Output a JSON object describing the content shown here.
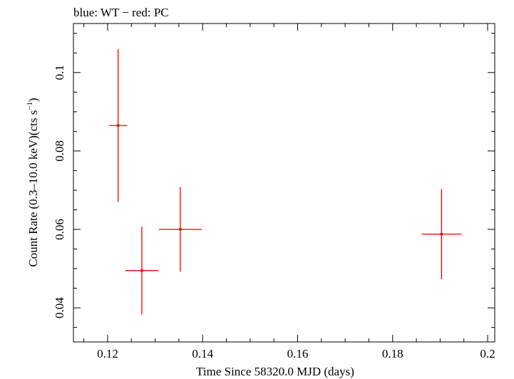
{
  "chart_data": {
    "type": "scatter",
    "title": "blue: WT − red: PC",
    "xlabel": "Time Since 58320.0 MJD (days)",
    "ylabel_main": "Count Rate (0.3–10.0 keV)(cts s",
    "ylabel_sup": "−1",
    "ylabel_close": ")",
    "xlim": [
      0.1128,
      0.2015
    ],
    "ylim": [
      0.0313,
      0.1125
    ],
    "xticks": [
      0.12,
      0.14,
      0.16,
      0.18,
      0.2
    ],
    "xtick_labels": [
      "0.12",
      "0.14",
      "0.16",
      "0.18",
      "0.2"
    ],
    "yticks": [
      0.04,
      0.06,
      0.08,
      0.1
    ],
    "ytick_labels": [
      "0.04",
      "0.06",
      "0.08",
      "0.1"
    ],
    "series": [
      {
        "color": "#ee0000",
        "points": [
          {
            "x": 0.1222,
            "y": 0.0865,
            "xerr": 0.0019,
            "yerr_lo": 0.0195,
            "yerr_hi": 0.0195
          },
          {
            "x": 0.1272,
            "y": 0.0495,
            "xerr": 0.0035,
            "yerr_lo": 0.0112,
            "yerr_hi": 0.0112
          },
          {
            "x": 0.1353,
            "y": 0.06,
            "xerr": 0.0045,
            "yerr_lo": 0.0108,
            "yerr_hi": 0.0108
          },
          {
            "x": 0.1903,
            "y": 0.0588,
            "xerr": 0.0042,
            "yerr_lo": 0.0115,
            "yerr_hi": 0.0115
          }
        ]
      }
    ],
    "grid": false
  }
}
